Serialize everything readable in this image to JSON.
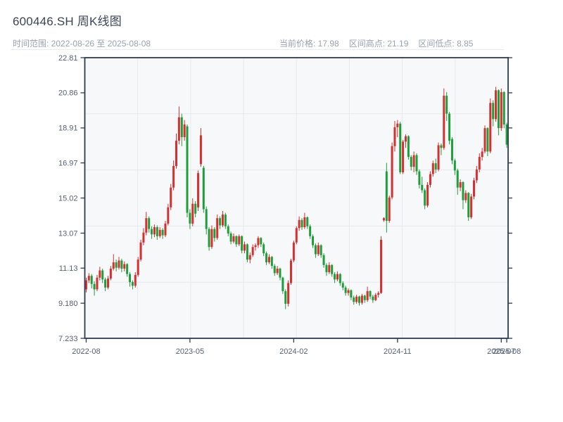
{
  "header": {
    "title": "600446.SH 周K线图",
    "time_range": "时间范围: 2022-08-26 至 2025-08-08",
    "current_price": "当前价格: 17.98",
    "range_high": "区间高点: 21.19",
    "range_low": "区间低点: 8.85"
  },
  "chart_data": {
    "type": "candlestick",
    "title": "600446.SH 周K线图",
    "subtitle_range": "2022-08-26 至 2025-08-08",
    "current_price": 17.98,
    "range_high": 21.19,
    "range_low": 8.85,
    "interval": "weekly",
    "color_convention": "red = up week, green = down week",
    "y_range": [
      7.233,
      22.81
    ],
    "y_ticks": [
      "22.81",
      "20.86",
      "18.91",
      "16.97",
      "15.02",
      "13.07",
      "11.13",
      "9.180",
      "7.233"
    ],
    "x_ticks": [
      {
        "index": 0,
        "label": "2022-08"
      },
      {
        "index": 38,
        "label": "2023-05"
      },
      {
        "index": 76,
        "label": "2024-02"
      },
      {
        "index": 114,
        "label": "2024-11"
      },
      {
        "index": 152,
        "label": "2025-07"
      },
      {
        "index": 154,
        "label": "2025-08"
      }
    ],
    "grid": {
      "h_divisions": 5,
      "v_divisions": 8
    },
    "colors": {
      "up": "#d62f2f",
      "down": "#1e9e3a",
      "plot_bg": "#f7f8fa",
      "grid": "#e7e9ed",
      "spine": "#2d3b52",
      "tick_label": "#566175"
    },
    "ohlc": [
      [
        9.95,
        10.6,
        9.78,
        10.45
      ],
      [
        10.45,
        10.85,
        10.3,
        10.7
      ],
      [
        10.7,
        10.8,
        10.0,
        10.25
      ],
      [
        10.25,
        10.4,
        9.6,
        9.95
      ],
      [
        9.95,
        10.75,
        9.85,
        10.6
      ],
      [
        10.6,
        11.2,
        10.45,
        11.0
      ],
      [
        11.0,
        11.1,
        10.3,
        10.5
      ],
      [
        10.5,
        10.6,
        9.85,
        10.05
      ],
      [
        10.05,
        10.7,
        9.95,
        10.55
      ],
      [
        10.55,
        11.25,
        10.45,
        11.1
      ],
      [
        11.1,
        11.9,
        11.0,
        11.45
      ],
      [
        11.45,
        11.6,
        10.95,
        11.15
      ],
      [
        11.15,
        11.75,
        11.05,
        11.55
      ],
      [
        11.55,
        11.65,
        10.9,
        11.1
      ],
      [
        11.1,
        11.5,
        10.95,
        11.35
      ],
      [
        11.35,
        11.4,
        10.65,
        10.8
      ],
      [
        10.8,
        10.9,
        10.1,
        10.35
      ],
      [
        10.35,
        10.45,
        9.95,
        10.15
      ],
      [
        10.15,
        10.9,
        10.05,
        10.75
      ],
      [
        10.75,
        11.75,
        10.65,
        11.6
      ],
      [
        11.6,
        12.7,
        11.5,
        12.55
      ],
      [
        12.55,
        13.35,
        12.4,
        13.1
      ],
      [
        13.1,
        14.25,
        12.95,
        13.9
      ],
      [
        13.9,
        14.0,
        13.1,
        13.3
      ],
      [
        13.3,
        13.45,
        12.75,
        13.0
      ],
      [
        13.0,
        13.55,
        12.85,
        13.4
      ],
      [
        13.4,
        13.5,
        12.7,
        12.9
      ],
      [
        12.9,
        13.4,
        12.8,
        13.25
      ],
      [
        13.25,
        13.35,
        12.75,
        12.95
      ],
      [
        12.95,
        13.75,
        12.85,
        13.6
      ],
      [
        13.6,
        14.7,
        13.5,
        14.5
      ],
      [
        14.5,
        15.8,
        14.35,
        15.6
      ],
      [
        15.6,
        17.1,
        15.45,
        16.8
      ],
      [
        16.8,
        18.6,
        16.65,
        18.2
      ],
      [
        18.2,
        20.1,
        18.0,
        19.5
      ],
      [
        19.5,
        19.7,
        17.9,
        18.4
      ],
      [
        18.4,
        19.35,
        18.2,
        19.1
      ],
      [
        19.0,
        19.1,
        13.95,
        14.2
      ],
      [
        14.2,
        14.4,
        13.3,
        13.6
      ],
      [
        13.6,
        15.0,
        13.45,
        14.7
      ],
      [
        14.7,
        14.85,
        13.95,
        14.15
      ],
      [
        14.5,
        16.55,
        14.3,
        16.4
      ],
      [
        16.9,
        18.9,
        16.75,
        18.5
      ],
      [
        16.7,
        16.8,
        14.2,
        14.4
      ],
      [
        14.4,
        14.55,
        13.0,
        13.3
      ],
      [
        13.3,
        13.4,
        12.1,
        12.3
      ],
      [
        12.3,
        13.5,
        12.2,
        13.3
      ],
      [
        13.3,
        13.4,
        12.6,
        12.8
      ],
      [
        12.8,
        14.1,
        12.7,
        13.9
      ],
      [
        13.9,
        14.0,
        13.3,
        13.5
      ],
      [
        13.5,
        14.3,
        13.4,
        14.1
      ],
      [
        14.1,
        14.2,
        13.3,
        13.45
      ],
      [
        13.45,
        13.55,
        12.9,
        13.05
      ],
      [
        13.05,
        13.15,
        12.45,
        12.6
      ],
      [
        12.6,
        13.05,
        12.5,
        12.9
      ],
      [
        12.9,
        12.95,
        12.3,
        12.45
      ],
      [
        12.45,
        13.0,
        12.35,
        12.9
      ],
      [
        12.9,
        12.95,
        11.95,
        12.1
      ],
      [
        12.1,
        12.6,
        11.95,
        12.45
      ],
      [
        12.45,
        12.5,
        11.45,
        11.6
      ],
      [
        11.6,
        12.0,
        11.4,
        11.85
      ],
      [
        11.85,
        12.45,
        11.75,
        12.3
      ],
      [
        12.3,
        12.5,
        12.1,
        12.4
      ],
      [
        12.4,
        12.9,
        12.25,
        12.8
      ],
      [
        12.8,
        12.85,
        12.3,
        12.45
      ],
      [
        12.45,
        12.55,
        11.8,
        11.95
      ],
      [
        11.95,
        12.05,
        11.3,
        11.45
      ],
      [
        11.45,
        11.9,
        11.35,
        11.75
      ],
      [
        11.75,
        11.8,
        11.1,
        11.25
      ],
      [
        11.25,
        11.35,
        10.7,
        10.85
      ],
      [
        10.85,
        11.25,
        10.75,
        11.1
      ],
      [
        11.1,
        11.15,
        10.45,
        10.6
      ],
      [
        10.6,
        10.65,
        9.7,
        9.85
      ],
      [
        9.85,
        9.95,
        8.85,
        9.15
      ],
      [
        9.15,
        10.45,
        9.0,
        10.3
      ],
      [
        10.3,
        11.65,
        10.2,
        11.55
      ],
      [
        11.55,
        12.65,
        11.45,
        12.55
      ],
      [
        12.55,
        13.45,
        12.45,
        13.35
      ],
      [
        13.35,
        14.0,
        13.2,
        13.8
      ],
      [
        13.8,
        13.9,
        13.25,
        13.4
      ],
      [
        13.4,
        14.2,
        13.3,
        13.95
      ],
      [
        13.95,
        14.0,
        13.3,
        13.45
      ],
      [
        13.45,
        13.55,
        12.75,
        12.9
      ],
      [
        12.9,
        13.0,
        12.25,
        12.4
      ],
      [
        12.4,
        12.5,
        11.7,
        11.9
      ],
      [
        11.9,
        12.55,
        11.8,
        12.4
      ],
      [
        12.4,
        12.45,
        11.7,
        11.85
      ],
      [
        11.85,
        11.95,
        11.15,
        11.3
      ],
      [
        11.3,
        11.4,
        10.7,
        10.9
      ],
      [
        10.9,
        11.45,
        10.8,
        11.3
      ],
      [
        11.3,
        11.35,
        10.65,
        10.8
      ],
      [
        10.8,
        10.9,
        10.3,
        10.5
      ],
      [
        10.5,
        10.95,
        10.4,
        10.8
      ],
      [
        10.8,
        10.85,
        10.15,
        10.3
      ],
      [
        10.3,
        10.4,
        9.9,
        10.05
      ],
      [
        10.05,
        10.15,
        9.6,
        9.75
      ],
      [
        9.75,
        10.0,
        9.6,
        9.9
      ],
      [
        9.9,
        9.95,
        9.35,
        9.5
      ],
      [
        9.5,
        9.6,
        9.1,
        9.25
      ],
      [
        9.25,
        9.65,
        9.15,
        9.55
      ],
      [
        9.55,
        9.6,
        9.05,
        9.2
      ],
      [
        9.2,
        9.7,
        9.1,
        9.6
      ],
      [
        9.6,
        9.65,
        9.2,
        9.35
      ],
      [
        9.35,
        10.1,
        9.25,
        9.85
      ],
      [
        9.85,
        9.9,
        9.4,
        9.55
      ],
      [
        9.55,
        9.65,
        9.2,
        9.35
      ],
      [
        9.35,
        9.75,
        9.3,
        9.65
      ],
      [
        9.65,
        9.85,
        9.5,
        9.75
      ],
      [
        9.75,
        12.9,
        9.7,
        12.7
      ],
      [
        13.78,
        13.95,
        13.7,
        13.9
      ],
      [
        16.5,
        16.97,
        13.1,
        13.75
      ],
      [
        13.75,
        15.15,
        13.65,
        15.05
      ],
      [
        15.05,
        18.1,
        14.95,
        17.9
      ],
      [
        17.9,
        19.3,
        17.6,
        18.95
      ],
      [
        18.95,
        19.35,
        18.4,
        19.15
      ],
      [
        19.15,
        19.25,
        16.35,
        16.45
      ],
      [
        16.45,
        18.25,
        16.35,
        18.15
      ],
      [
        18.15,
        18.55,
        17.8,
        18.45
      ],
      [
        18.45,
        18.5,
        17.15,
        17.3
      ],
      [
        17.3,
        17.4,
        16.55,
        16.75
      ],
      [
        16.75,
        17.6,
        16.45,
        17.4
      ],
      [
        17.4,
        17.5,
        16.3,
        16.5
      ],
      [
        16.5,
        16.6,
        15.55,
        15.75
      ],
      [
        15.75,
        16.2,
        15.3,
        15.45
      ],
      [
        15.45,
        15.55,
        14.4,
        14.6
      ],
      [
        14.6,
        15.9,
        14.5,
        15.75
      ],
      [
        15.75,
        16.5,
        15.6,
        16.35
      ],
      [
        16.35,
        17.1,
        16.2,
        16.95
      ],
      [
        16.95,
        17.2,
        16.4,
        16.6
      ],
      [
        16.6,
        18.1,
        16.5,
        17.95
      ],
      [
        17.95,
        18.05,
        17.4,
        17.8
      ],
      [
        17.8,
        21.1,
        17.7,
        20.7
      ],
      [
        20.7,
        20.9,
        19.3,
        19.7
      ],
      [
        19.7,
        19.8,
        18.0,
        18.2
      ],
      [
        18.3,
        18.4,
        16.9,
        17.1
      ],
      [
        17.1,
        17.2,
        16.3,
        16.55
      ],
      [
        16.55,
        16.65,
        15.2,
        15.6
      ],
      [
        15.6,
        16.05,
        15.4,
        15.9
      ],
      [
        15.9,
        15.95,
        14.4,
        14.9
      ],
      [
        14.9,
        15.45,
        14.75,
        15.3
      ],
      [
        15.3,
        15.35,
        13.75,
        13.95
      ],
      [
        13.95,
        15.25,
        13.85,
        15.1
      ],
      [
        15.1,
        16.15,
        14.95,
        16.0
      ],
      [
        16.0,
        16.8,
        15.85,
        16.6
      ],
      [
        16.6,
        17.5,
        16.45,
        17.3
      ],
      [
        17.3,
        17.8,
        17.1,
        17.6
      ],
      [
        17.6,
        19.05,
        17.5,
        18.9
      ],
      [
        18.9,
        18.95,
        17.35,
        17.6
      ],
      [
        17.6,
        20.55,
        17.5,
        20.3
      ],
      [
        20.3,
        20.45,
        19.0,
        19.4
      ],
      [
        19.4,
        21.19,
        19.25,
        21.0
      ],
      [
        21.0,
        21.05,
        18.5,
        18.9
      ],
      [
        18.9,
        21.1,
        18.75,
        20.9
      ],
      [
        20.9,
        20.95,
        18.9,
        19.1
      ],
      [
        19.1,
        19.2,
        17.8,
        17.98
      ]
    ]
  }
}
